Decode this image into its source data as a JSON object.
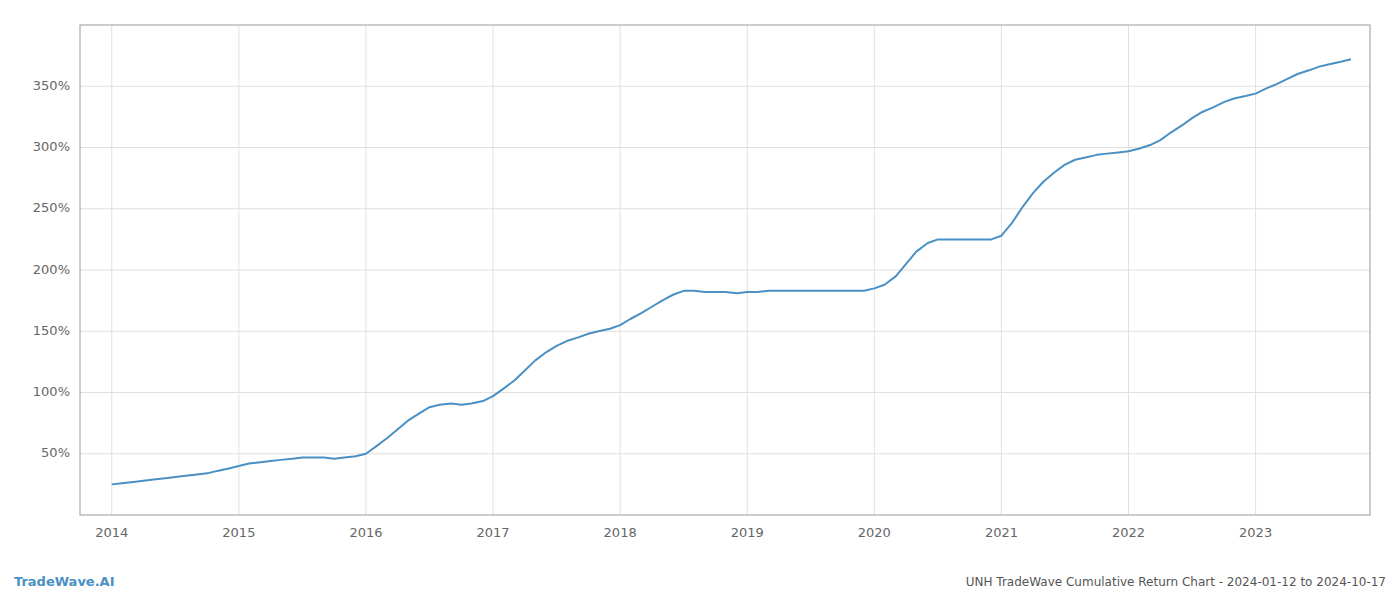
{
  "chart_data": {
    "type": "line",
    "title": "UNH TradeWave Cumulative Return Chart - 2024-01-12 to 2024-10-17",
    "annotations": [
      "TradeWave.AI"
    ],
    "color": "#4a90c4",
    "grid": true,
    "x": [
      2014.0,
      2014.08,
      2014.17,
      2014.25,
      2014.33,
      2014.42,
      2014.5,
      2014.58,
      2014.67,
      2014.75,
      2014.83,
      2014.92,
      2015.0,
      2015.08,
      2015.17,
      2015.25,
      2015.33,
      2015.42,
      2015.5,
      2015.58,
      2015.67,
      2015.75,
      2015.83,
      2015.92,
      2016.0,
      2016.08,
      2016.17,
      2016.25,
      2016.33,
      2016.42,
      2016.5,
      2016.58,
      2016.67,
      2016.75,
      2016.83,
      2016.92,
      2017.0,
      2017.08,
      2017.17,
      2017.25,
      2017.33,
      2017.42,
      2017.5,
      2017.58,
      2017.67,
      2017.75,
      2017.83,
      2017.92,
      2018.0,
      2018.08,
      2018.17,
      2018.25,
      2018.33,
      2018.42,
      2018.5,
      2018.58,
      2018.67,
      2018.75,
      2018.83,
      2018.92,
      2019.0,
      2019.08,
      2019.17,
      2019.25,
      2019.33,
      2019.42,
      2019.5,
      2019.58,
      2019.67,
      2019.75,
      2019.83,
      2019.92,
      2020.0,
      2020.08,
      2020.17,
      2020.25,
      2020.33,
      2020.42,
      2020.5,
      2020.58,
      2020.67,
      2020.75,
      2020.83,
      2020.92,
      2021.0,
      2021.08,
      2021.17,
      2021.25,
      2021.33,
      2021.42,
      2021.5,
      2021.58,
      2021.67,
      2021.75,
      2021.83,
      2021.92,
      2022.0,
      2022.08,
      2022.17,
      2022.25,
      2022.33,
      2022.42,
      2022.5,
      2022.58,
      2022.67,
      2022.75,
      2022.83,
      2022.92,
      2023.0,
      2023.08,
      2023.17,
      2023.25,
      2023.33,
      2023.42,
      2023.5,
      2023.58,
      2023.67,
      2023.75
    ],
    "values": [
      25,
      26,
      27,
      28,
      29,
      30,
      31,
      32,
      33,
      34,
      36,
      38,
      40,
      42,
      43,
      44,
      45,
      46,
      47,
      47,
      47,
      46,
      47,
      48,
      50,
      56,
      63,
      70,
      77,
      83,
      88,
      90,
      91,
      90,
      91,
      93,
      97,
      103,
      110,
      118,
      126,
      133,
      138,
      142,
      145,
      148,
      150,
      152,
      155,
      160,
      165,
      170,
      175,
      180,
      183,
      183,
      182,
      182,
      182,
      181,
      182,
      182,
      183,
      183,
      183,
      183,
      183,
      183,
      183,
      183,
      183,
      183,
      185,
      188,
      195,
      205,
      215,
      222,
      225,
      225,
      225,
      225,
      225,
      225,
      228,
      238,
      252,
      263,
      272,
      280,
      286,
      290,
      292,
      294,
      295,
      296,
      297,
      299,
      302,
      306,
      312,
      318,
      324,
      329,
      333,
      337,
      340,
      342,
      344,
      348,
      352,
      356,
      360,
      363,
      366,
      368,
      370,
      372
    ],
    "xlim": [
      2013.75,
      2023.9
    ],
    "ylim": [
      0,
      400
    ],
    "xticks": [
      2014,
      2015,
      2016,
      2017,
      2018,
      2019,
      2020,
      2021,
      2022,
      2023
    ],
    "yticks": [
      {
        "value": 50,
        "label": "50%"
      },
      {
        "value": 100,
        "label": "100%"
      },
      {
        "value": 150,
        "label": "150%"
      },
      {
        "value": 200,
        "label": "200%"
      },
      {
        "value": 250,
        "label": "250%"
      },
      {
        "value": 300,
        "label": "300%"
      },
      {
        "value": 350,
        "label": "350%"
      }
    ]
  }
}
